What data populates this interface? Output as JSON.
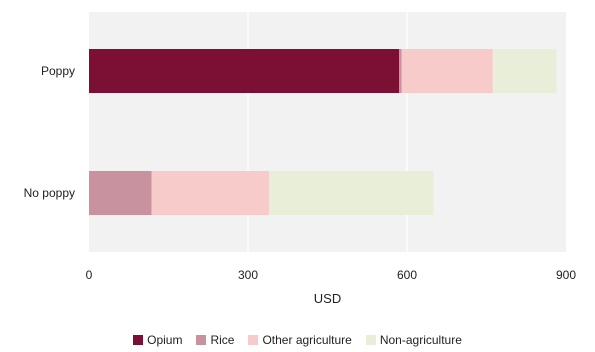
{
  "chart_data": {
    "type": "bar",
    "orientation": "horizontal",
    "stacked": true,
    "categories": [
      "Poppy",
      "No poppy"
    ],
    "series": [
      {
        "name": "Opium",
        "color": "#7b1034",
        "values": [
          585,
          0
        ]
      },
      {
        "name": "Rice",
        "color": "#c9929f",
        "values": [
          5,
          118
        ]
      },
      {
        "name": "Other agriculture",
        "color": "#f8cbcb",
        "values": [
          172,
          222
        ]
      },
      {
        "name": "Non-agriculture",
        "color": "#e8eed8",
        "values": [
          120,
          310
        ]
      }
    ],
    "xlabel": "USD",
    "ylabel": "",
    "xlim": [
      0,
      900
    ],
    "xticks": [
      0,
      300,
      600,
      900
    ],
    "xtick_labels": [
      "0",
      "300",
      "600",
      "900"
    ],
    "grid": "vertical",
    "plot_background": "#f2f2f2",
    "legend_position": "bottom"
  }
}
